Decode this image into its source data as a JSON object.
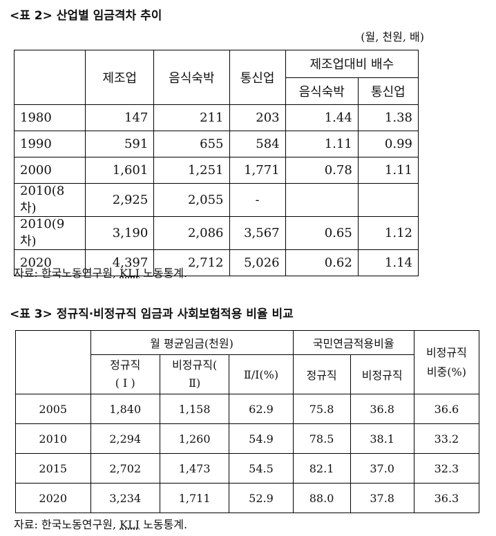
{
  "table2": {
    "caption": "<표 2> 산업별 임금격차 추이",
    "unit": "(월, 천원, 배)",
    "headers": {
      "manufacturing": "제조업",
      "food_lodging": "음식숙박",
      "telecom": "통신업",
      "ratio_group": "제조업대비 배수",
      "ratio_food": "음식숙박",
      "ratio_telecom": "통신업"
    },
    "rows": [
      [
        "1980",
        "147",
        "211",
        "203",
        "1.44",
        "1.38"
      ],
      [
        "1990",
        "591",
        "655",
        "584",
        "1.11",
        "0.99"
      ],
      [
        "2000",
        "1,601",
        "1,251",
        "1,771",
        "0.78",
        "1.11"
      ],
      [
        "2010(8차)",
        "2,925",
        "2,055",
        "-",
        "",
        ""
      ],
      [
        "2010(9차)",
        "3,190",
        "2,086",
        "3,567",
        "0.65",
        "1.12"
      ],
      [
        "2020",
        "4,397",
        "2,712",
        "5,026",
        "0.62",
        "1.14"
      ]
    ],
    "source_prefix": "자료: 한국노동연구원, ",
    "source_kli": "KLI",
    "source_suffix": " 노동통계."
  },
  "table3": {
    "caption": "<표 3> 정규직·비정규직 임금과 사회보험적용 비율 비교",
    "headers": {
      "wage_group": "월 평균임금(천원)",
      "regular_l1": "정규직",
      "regular_l2": "( Ⅰ )",
      "nonregular_l1": "비정규직(",
      "nonregular_l2": "Ⅱ)",
      "ratio": "Ⅱ/Ⅰ(%)",
      "pension_group": "국민연금적용비율",
      "pension_regular": "정규직",
      "pension_nonregular": "비정규직",
      "share_l1": "비정규직",
      "share_l2": "비중(%)"
    },
    "rows": [
      [
        "2005",
        "1,840",
        "1,158",
        "62.9",
        "75.8",
        "36.8",
        "36.6"
      ],
      [
        "2010",
        "2,294",
        "1,260",
        "54.9",
        "78.5",
        "38.1",
        "33.2"
      ],
      [
        "2015",
        "2,702",
        "1,473",
        "54.5",
        "82.1",
        "37.0",
        "32.3"
      ],
      [
        "2020",
        "3,234",
        "1,711",
        "52.9",
        "88.0",
        "37.8",
        "36.3"
      ]
    ],
    "source_prefix": "자료: 한국노동연구원, ",
    "source_kli": "KLI",
    "source_suffix": " 노동통계."
  }
}
